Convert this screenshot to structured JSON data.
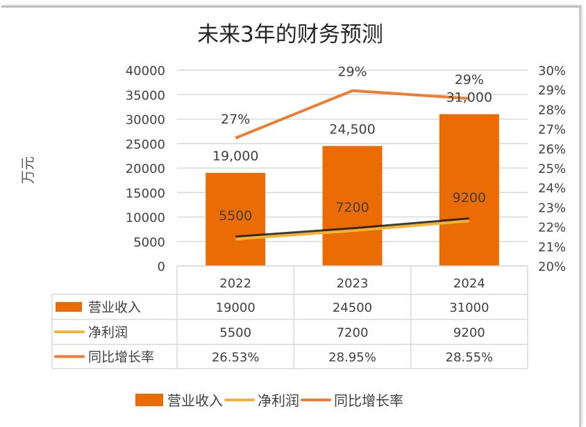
{
  "chart_data": {
    "type": "bar+line",
    "title": "未来3年的财务预测",
    "ylabel": "万元",
    "categories": [
      "2022",
      "2023",
      "2024"
    ],
    "ylim": [
      0,
      40000
    ],
    "y_ticks": [
      "0",
      "5000",
      "10000",
      "15000",
      "20000",
      "25000",
      "30000",
      "35000",
      "40000"
    ],
    "y2lim": [
      20,
      30
    ],
    "y2_ticks": [
      "20%",
      "21%",
      "22%",
      "23%",
      "24%",
      "25%",
      "26%",
      "27%",
      "28%",
      "29%",
      "30%"
    ],
    "grid": true,
    "legend_placement": "bottom",
    "series": [
      {
        "name": "营业收入",
        "type": "bar",
        "axis": "left",
        "values": [
          19000,
          24500,
          31000
        ],
        "labels": [
          "19,000",
          "24,500",
          "31,000"
        ],
        "table": [
          "19000",
          "24500",
          "31000"
        ],
        "color": "#EB6B05"
      },
      {
        "name": "净利润",
        "type": "line",
        "axis": "left",
        "values": [
          5500,
          7200,
          9200
        ],
        "labels": [
          "5500",
          "7200",
          "9200"
        ],
        "table": [
          "5500",
          "7200",
          "9200"
        ],
        "color": "#F5B335"
      },
      {
        "name": "同比增长率",
        "type": "line",
        "axis": "right",
        "values": [
          26.53,
          28.95,
          28.55
        ],
        "labels": [
          "27%",
          "29%",
          "29%"
        ],
        "table": [
          "26.53%",
          "28.95%",
          "28.55%"
        ],
        "color": "#ED7D31"
      }
    ]
  }
}
